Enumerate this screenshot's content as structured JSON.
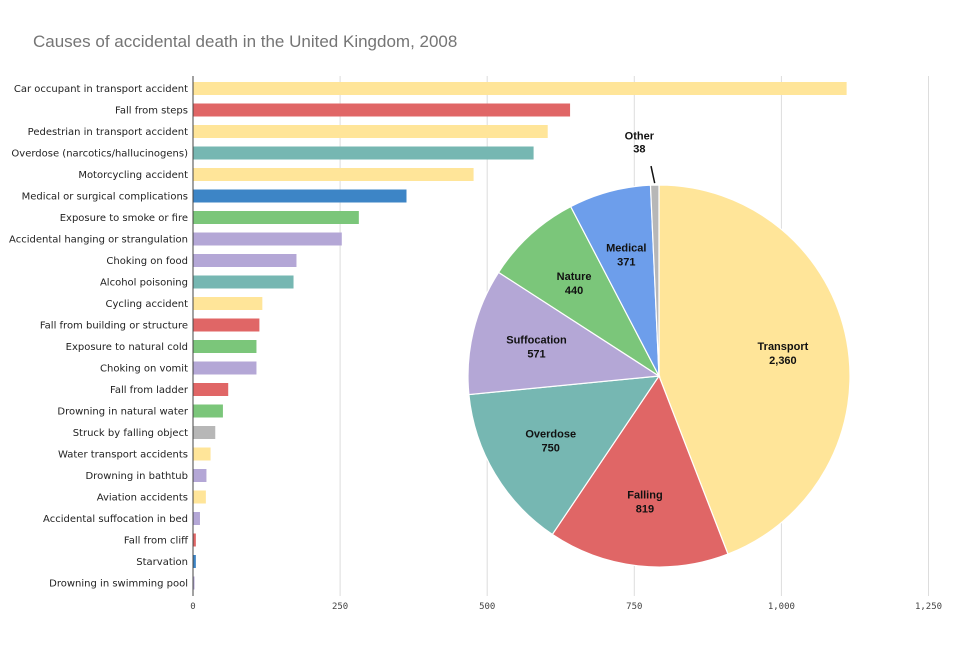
{
  "title": "Causes of accidental death in the United Kingdom, 2008",
  "colors": {
    "transport": "#FFE599",
    "falling": "#E06666",
    "overdose": "#76B7B2",
    "medical": "#3D85C6",
    "nature": "#7BC67A",
    "suffocation": "#B4A7D6",
    "other": "#B7B7B7",
    "pie_medical": "#6D9EEB",
    "gridline": "#DDDDDD",
    "axis": "#444444"
  },
  "chart_data": [
    {
      "type": "bar",
      "orientation": "horizontal",
      "xlim": [
        0,
        1250
      ],
      "xticks": [
        "0",
        "250",
        "500",
        "750",
        "1,000",
        "1,250"
      ],
      "xtick_values": [
        0,
        250,
        500,
        750,
        1000,
        1250
      ],
      "grid": true,
      "categories": [
        "Car occupant in transport accident",
        "Fall from steps",
        "Pedestrian in transport accident",
        "Overdose (narcotics/hallucinogens)",
        "Motorcycling accident",
        "Medical or surgical complications",
        "Exposure to smoke or fire",
        "Accidental hanging or strangulation",
        "Choking on food",
        "Alcohol poisoning",
        "Cycling accident",
        "Fall from building or structure",
        "Exposure to natural cold",
        "Choking on vomit",
        "Fall from ladder",
        "Drowning in natural water",
        "Struck by falling object",
        "Water transport accidents",
        "Drowning in bathtub",
        "Aviation accidents",
        "Accidental suffocation in bed",
        "Fall from cliff",
        "Starvation",
        "Drowning in swimming pool"
      ],
      "values": [
        1110,
        640,
        602,
        578,
        476,
        362,
        281,
        252,
        175,
        170,
        117,
        112,
        107,
        107,
        59,
        50,
        37,
        29,
        22,
        21,
        11,
        4,
        4,
        1
      ],
      "groups": [
        "transport",
        "falling",
        "transport",
        "overdose",
        "transport",
        "medical",
        "nature",
        "suffocation",
        "suffocation",
        "overdose",
        "transport",
        "falling",
        "nature",
        "suffocation",
        "falling",
        "nature",
        "other",
        "transport",
        "suffocation",
        "transport",
        "suffocation",
        "falling",
        "medical",
        "suffocation"
      ]
    },
    {
      "type": "pie",
      "slices": [
        {
          "label": "Transport",
          "value": 2360,
          "value_label": "2,360",
          "group": "transport"
        },
        {
          "label": "Falling",
          "value": 819,
          "value_label": "819",
          "group": "falling"
        },
        {
          "label": "Overdose",
          "value": 750,
          "value_label": "750",
          "group": "overdose"
        },
        {
          "label": "Suffocation",
          "value": 571,
          "value_label": "571",
          "group": "suffocation"
        },
        {
          "label": "Nature",
          "value": 440,
          "value_label": "440",
          "group": "nature"
        },
        {
          "label": "Medical",
          "value": 371,
          "value_label": "371",
          "group": "pie_medical"
        },
        {
          "label": "Other",
          "value": 38,
          "value_label": "38",
          "group": "other"
        }
      ]
    }
  ]
}
